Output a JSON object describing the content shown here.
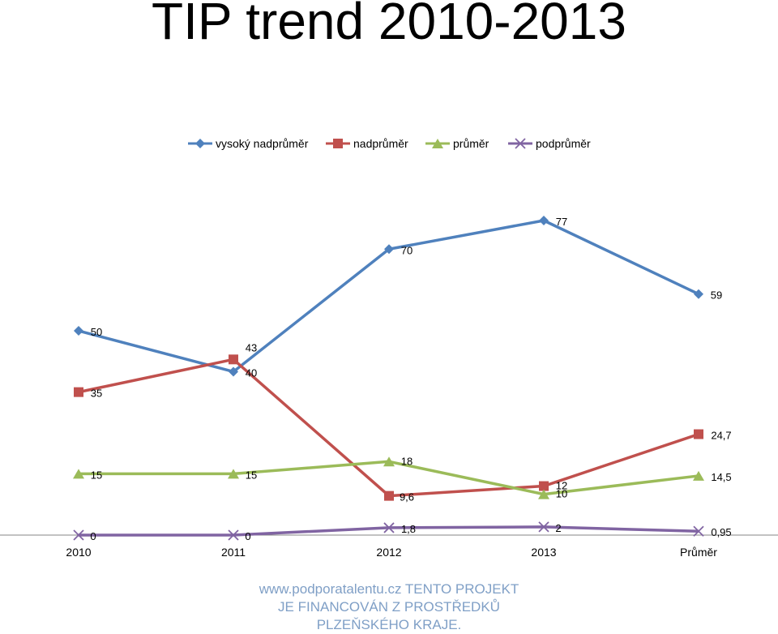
{
  "chart_data": {
    "type": "line",
    "title": "TIP trend 2010-2013",
    "categories": [
      "2010",
      "2011",
      "2012",
      "2013",
      "Průměr"
    ],
    "ylim": [
      0,
      90
    ],
    "grid": false,
    "legend_position": "top",
    "series": [
      {
        "name": "vysoký nadprůměr",
        "color": "#4f81bd",
        "marker": "diamond",
        "values": [
          50,
          40,
          70,
          77,
          59
        ],
        "labels": [
          "50",
          "40",
          "70",
          "77",
          "59"
        ]
      },
      {
        "name": "nadprůměr",
        "color": "#c0504d",
        "marker": "square",
        "values": [
          35,
          43,
          9.6,
          12,
          24.7
        ],
        "labels": [
          "35",
          "43",
          "9,6",
          "12",
          "24,7"
        ]
      },
      {
        "name": "průměr",
        "color": "#9bbb59",
        "marker": "triangle",
        "values": [
          15,
          15,
          18,
          10,
          14.5
        ],
        "labels": [
          "15",
          "15",
          "18",
          "10",
          "14,5"
        ]
      },
      {
        "name": "podprůměr",
        "color": "#8064a2",
        "marker": "x",
        "values": [
          0,
          0,
          1.8,
          2,
          0.95
        ],
        "labels": [
          "0",
          "0",
          "1,8",
          "2",
          "0,95"
        ]
      }
    ]
  },
  "footer": {
    "text": "www.podporatalentu.cz  TENTO PROJEKT JE FINANCOVÁN Z PROSTŘEDKŮ PLZEŇSKÉHO KRAJE."
  }
}
